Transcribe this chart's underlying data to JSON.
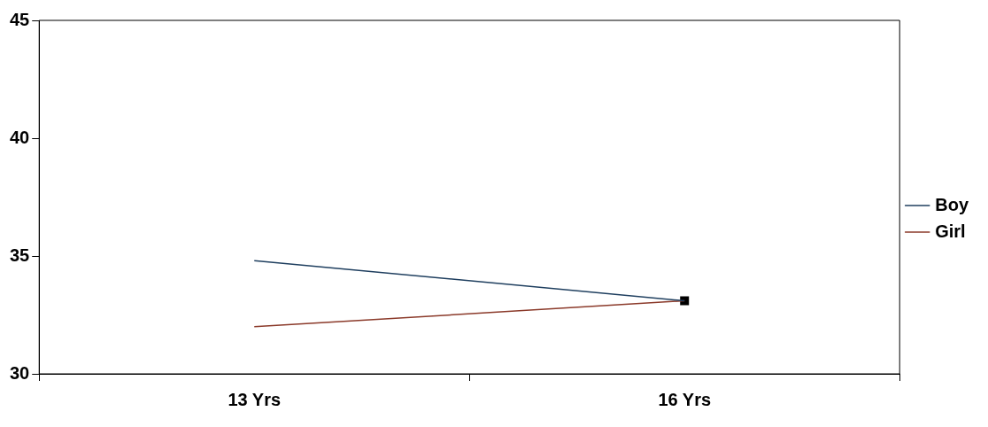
{
  "chart_data": {
    "type": "line",
    "categories": [
      "13 Yrs",
      "16 Yrs"
    ],
    "series": [
      {
        "name": "Boy",
        "color": "#1f3f5f",
        "values": [
          34.8,
          33.1
        ]
      },
      {
        "name": "Girl",
        "color": "#8b3a2a",
        "values": [
          32.0,
          33.1
        ]
      },
      {
        "type": "scatter",
        "color": "#000000",
        "x": [
          "16 Yrs"
        ],
        "values": [
          33.1
        ],
        "marker": "square"
      }
    ],
    "ylim": [
      30,
      45
    ],
    "yticks": [
      30,
      35,
      40,
      45
    ],
    "grid": false,
    "legend": "right",
    "marker": "none",
    "line_style": "solid"
  }
}
